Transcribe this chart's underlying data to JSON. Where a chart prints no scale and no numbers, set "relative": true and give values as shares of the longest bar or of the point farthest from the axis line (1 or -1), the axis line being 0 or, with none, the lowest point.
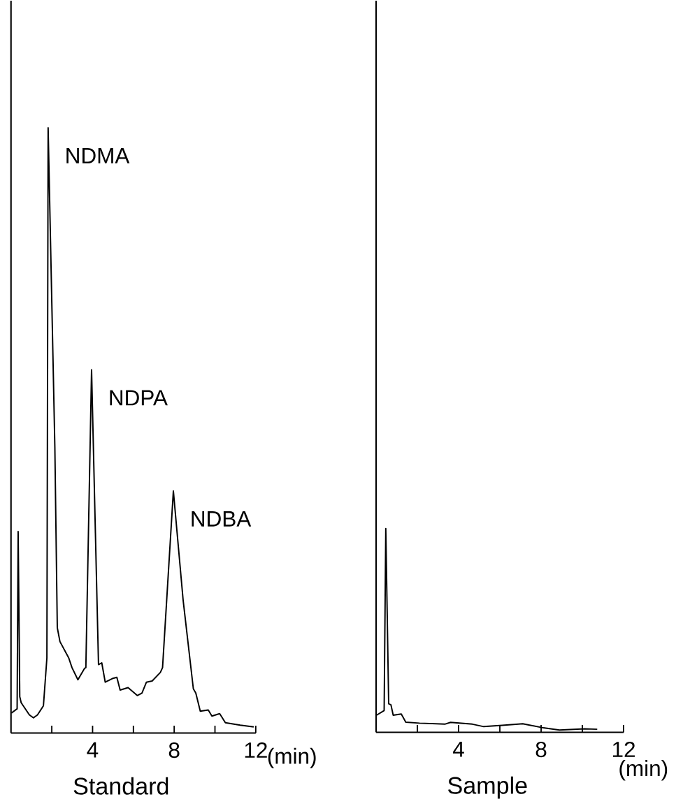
{
  "chart_data": [
    {
      "type": "line",
      "title": "Standard",
      "xlabel": "(min)",
      "relative": true,
      "color": "#000000",
      "marker": "none",
      "line_style": "solid",
      "xlim": [
        0,
        12
      ],
      "xticks": [
        {
          "value": 2,
          "label": null
        },
        4,
        {
          "value": 6,
          "label": null
        },
        8,
        {
          "value": 10,
          "label": null
        },
        12
      ],
      "x": [
        0.02,
        0.3,
        0.35,
        0.43,
        0.5,
        0.6,
        0.9,
        1.1,
        1.3,
        1.59,
        1.76,
        1.82,
        2.15,
        2.27,
        2.4,
        2.83,
        2.99,
        3.28,
        3.61,
        3.67,
        3.95,
        4.29,
        4.45,
        4.62,
        4.97,
        5.19,
        5.35,
        5.74,
        6.19,
        6.42,
        6.64,
        6.92,
        7.32,
        7.43,
        7.96,
        8.44,
        8.94,
        9.06,
        9.28,
        9.67,
        9.85,
        10.23,
        10.51,
        11.24,
        11.9
      ],
      "values": [
        0.033,
        0.04,
        0.333,
        0.06,
        0.05,
        0.045,
        0.03,
        0.025,
        0.03,
        0.045,
        0.124,
        1.0,
        0.473,
        0.174,
        0.151,
        0.124,
        0.108,
        0.088,
        0.107,
        0.108,
        0.6,
        0.113,
        0.116,
        0.084,
        0.09,
        0.092,
        0.071,
        0.075,
        0.062,
        0.066,
        0.084,
        0.086,
        0.1,
        0.108,
        0.4,
        0.219,
        0.073,
        0.066,
        0.036,
        0.038,
        0.028,
        0.032,
        0.017,
        0.013,
        0.01
      ],
      "annotations": [
        {
          "text": "NDMA",
          "x": 1.82,
          "y": 1.0
        },
        {
          "text": "NDPA",
          "x": 3.95,
          "y": 0.6
        },
        {
          "text": "NDBA",
          "x": 7.96,
          "y": 0.4
        }
      ]
    },
    {
      "type": "line",
      "title": "Sample",
      "xlabel": "(min)",
      "relative": true,
      "color": "#000000",
      "marker": "none",
      "line_style": "solid",
      "xlim": [
        0,
        12
      ],
      "xticks": [
        {
          "value": 2,
          "label": null
        },
        4,
        {
          "value": 6,
          "label": null
        },
        8,
        {
          "value": 10,
          "label": null
        },
        12
      ],
      "x": [
        0.02,
        0.39,
        0.47,
        0.61,
        0.72,
        0.83,
        1.22,
        1.44,
        2.11,
        3.33,
        3.61,
        4.67,
        5.22,
        6.11,
        7.11,
        8.11,
        8.89,
        10.11,
        10.72
      ],
      "values": [
        0.084,
        0.107,
        1.0,
        0.14,
        0.135,
        0.084,
        0.09,
        0.05,
        0.045,
        0.04,
        0.049,
        0.04,
        0.028,
        0.034,
        0.042,
        0.022,
        0.011,
        0.017,
        0.015
      ]
    }
  ]
}
